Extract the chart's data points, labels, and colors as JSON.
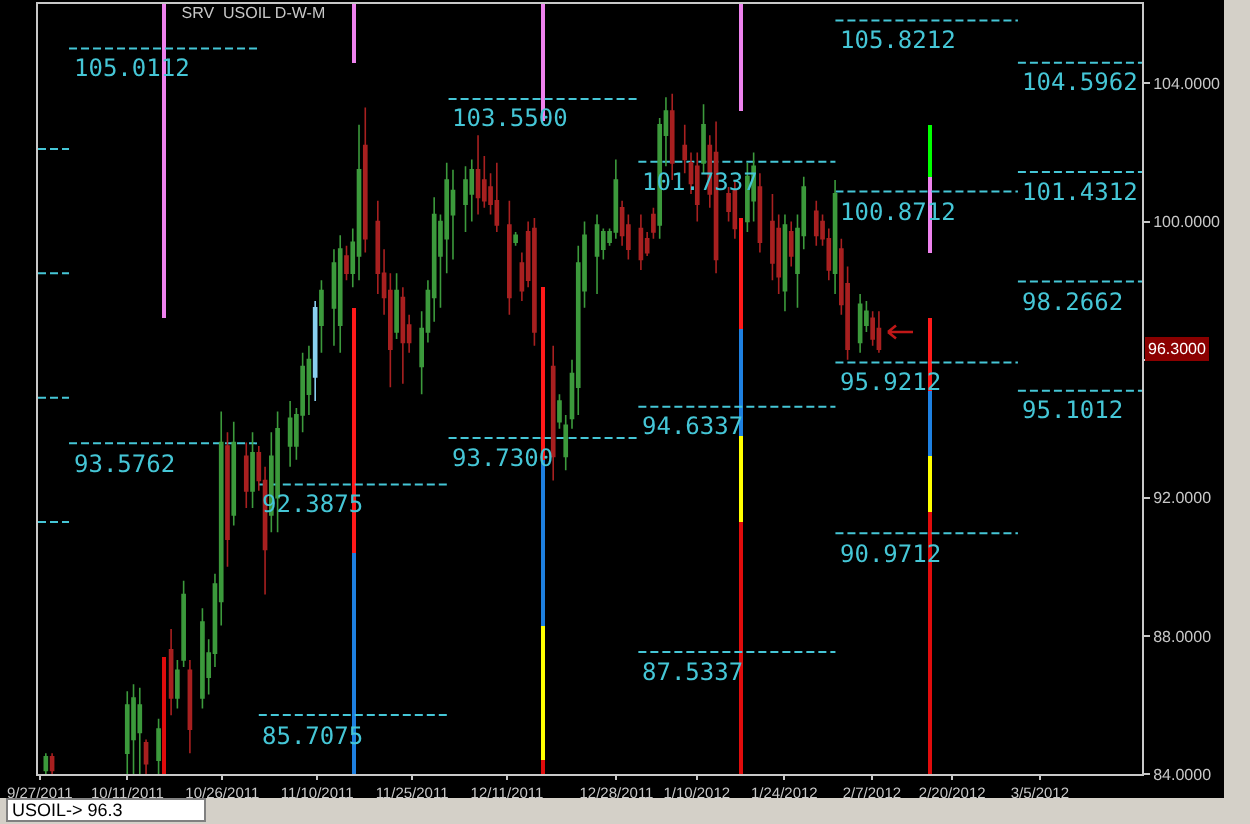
{
  "chart_data": {
    "type": "candlestick",
    "title": "SRV  USOIL D-W-M",
    "x": [
      "2011-09-28",
      "2011-09-29",
      "2011-10-11",
      "2011-10-12",
      "2011-10-13",
      "2011-10-14",
      "2011-10-16",
      "2011-10-18",
      "2011-10-19",
      "2011-10-20",
      "2011-10-21",
      "2011-10-23",
      "2011-10-24",
      "2011-10-25",
      "2011-10-26",
      "2011-10-27",
      "2011-10-28",
      "2011-10-30",
      "2011-10-31",
      "2011-11-01",
      "2011-11-02",
      "2011-11-03",
      "2011-11-04",
      "2011-11-06",
      "2011-11-07",
      "2011-11-08",
      "2011-11-09",
      "2011-11-10",
      "2011-11-11",
      "2011-11-13",
      "2011-11-14",
      "2011-11-15",
      "2011-11-16",
      "2011-11-17",
      "2011-11-18",
      "2011-11-20",
      "2011-11-21",
      "2011-11-22",
      "2011-11-23",
      "2011-11-24",
      "2011-11-25",
      "2011-11-27",
      "2011-11-28",
      "2011-11-29",
      "2011-11-30",
      "2011-12-01",
      "2011-12-02",
      "2011-12-04",
      "2011-12-05",
      "2011-12-06",
      "2011-12-07",
      "2011-12-08",
      "2011-12-09",
      "2011-12-11",
      "2011-12-12",
      "2011-12-13",
      "2011-12-14",
      "2011-12-15",
      "2011-12-18",
      "2011-12-19",
      "2011-12-20",
      "2011-12-21",
      "2011-12-22",
      "2011-12-23",
      "2011-12-25",
      "2011-12-26",
      "2011-12-27",
      "2011-12-28",
      "2011-12-29",
      "2011-12-30",
      "2012-01-01",
      "2012-01-02",
      "2012-01-03",
      "2012-01-04",
      "2012-01-05",
      "2012-01-06",
      "2012-01-08",
      "2012-01-09",
      "2012-01-10",
      "2012-01-11",
      "2012-01-12",
      "2012-01-13",
      "2012-01-15",
      "2012-01-16",
      "2012-01-18",
      "2012-01-19",
      "2012-01-20",
      "2012-01-22",
      "2012-01-23",
      "2012-01-24",
      "2012-01-25",
      "2012-01-26",
      "2012-01-27",
      "2012-01-29",
      "2012-01-30",
      "2012-01-31",
      "2012-02-01",
      "2012-02-02",
      "2012-02-03",
      "2012-02-05",
      "2012-02-06",
      "2012-02-07",
      "2012-02-08"
    ],
    "ohlc": [
      [
        84.1,
        84.6,
        84,
        84.5
      ],
      [
        84.5,
        84.6,
        84,
        84.1
      ],
      [
        84.6,
        86.4,
        84,
        86
      ],
      [
        85,
        86.6,
        84,
        86.2
      ],
      [
        85.2,
        86.5,
        84,
        86
      ],
      [
        84.9,
        85,
        84,
        84.3
      ],
      [
        84.4,
        85.6,
        84,
        85.3
      ],
      [
        87.6,
        88.2,
        85.7,
        86.2
      ],
      [
        86.2,
        87.3,
        85.9,
        87
      ],
      [
        87.3,
        89.6,
        87.1,
        89.2
      ],
      [
        87,
        87.3,
        84.6,
        85.3
      ],
      [
        86.2,
        88.8,
        85.9,
        88.4
      ],
      [
        86.8,
        87.9,
        86.3,
        87.5
      ],
      [
        87.5,
        89.8,
        87.1,
        89.5
      ],
      [
        89,
        94.5,
        88.3,
        93.6
      ],
      [
        93.5,
        93.9,
        90,
        90.8
      ],
      [
        91.5,
        94.2,
        91.2,
        93.6
      ],
      [
        93.2,
        93.6,
        91.7,
        92.2
      ],
      [
        92.2,
        93.9,
        91.7,
        93.3
      ],
      [
        93.3,
        93.5,
        92.2,
        92.5
      ],
      [
        92.5,
        92.9,
        89.2,
        90.5
      ],
      [
        91.5,
        93.9,
        91,
        93.2
      ],
      [
        92,
        94.5,
        91,
        94
      ],
      [
        93.5,
        94.8,
        92.9,
        94.3
      ],
      [
        93.5,
        94.6,
        93.1,
        94.4
      ],
      [
        94.4,
        96.2,
        93.9,
        95.8
      ],
      [
        95,
        96.4,
        94.4,
        96
      ],
      [
        95.5,
        97.7,
        94.8,
        97.5
      ],
      [
        97,
        98.3,
        96.2,
        98
      ],
      [
        97.5,
        99.2,
        96.4,
        98.8
      ],
      [
        97,
        99.6,
        96.2,
        99.2
      ],
      [
        99,
        99.3,
        98.3,
        98.5
      ],
      [
        98.5,
        99.8,
        98.1,
        99.4
      ],
      [
        99,
        102.8,
        98.3,
        101.5
      ],
      [
        102.2,
        103.3,
        99.1,
        99.5
      ],
      [
        100,
        100.6,
        97.9,
        98.5
      ],
      [
        98.5,
        99.2,
        97.3,
        97.8
      ],
      [
        98,
        98.5,
        95.2,
        96.3
      ],
      [
        96.8,
        98.5,
        96.6,
        98
      ],
      [
        97.8,
        98.1,
        95.3,
        96.5
      ],
      [
        97,
        97.3,
        96.2,
        96.5
      ],
      [
        95.8,
        97.4,
        95,
        96.9
      ],
      [
        96.8,
        98.3,
        96.5,
        98
      ],
      [
        97.8,
        100.7,
        97.1,
        100.2
      ],
      [
        99,
        100.2,
        97.5,
        100
      ],
      [
        99.5,
        101.7,
        98.5,
        101.2
      ],
      [
        100.2,
        101.5,
        98.9,
        100.9
      ],
      [
        100.5,
        101.6,
        99.7,
        101.2
      ],
      [
        100.8,
        101.8,
        100,
        101.5
      ],
      [
        101.5,
        102.5,
        100.2,
        100.7
      ],
      [
        101.2,
        101.9,
        100.4,
        100.6
      ],
      [
        101,
        101.4,
        100.2,
        100.5
      ],
      [
        100.6,
        101.7,
        99.7,
        99.9
      ],
      [
        99.9,
        100.6,
        97.3,
        97.8
      ],
      [
        99.4,
        99.7,
        99.3,
        99.6
      ],
      [
        98.8,
        99.1,
        97.7,
        98
      ],
      [
        99.7,
        100,
        98.1,
        98.3
      ],
      [
        99.8,
        100.1,
        96.4,
        96.8
      ],
      [
        95.8,
        96.4,
        92.5,
        93.2
      ],
      [
        94.2,
        95,
        94,
        94.8
      ],
      [
        93.2,
        94.4,
        92.8,
        94.1
      ],
      [
        94.3,
        96,
        94,
        95.6
      ],
      [
        95.2,
        99.3,
        94.4,
        98.8
      ],
      [
        98,
        100,
        97.5,
        99.6
      ],
      [
        99,
        100.2,
        97.9,
        99.9
      ],
      [
        99.2,
        99.8,
        98.9,
        99.7
      ],
      [
        99.4,
        99.8,
        99.3,
        99.7
      ],
      [
        99.7,
        101.8,
        99.5,
        101.2
      ],
      [
        100.4,
        100.6,
        99.3,
        99.6
      ],
      [
        99.9,
        100.2,
        98.9,
        99.2
      ],
      [
        99.8,
        100.2,
        98.6,
        98.9
      ],
      [
        99.5,
        99.7,
        99,
        99.1
      ],
      [
        100.2,
        100.4,
        99.5,
        99.7
      ],
      [
        99.9,
        103,
        99.5,
        102.8
      ],
      [
        102.5,
        103.6,
        101.6,
        103.2
      ],
      [
        103.2,
        103.7,
        101.2,
        101.7
      ],
      [
        102.2,
        102.8,
        101.4,
        101.8
      ],
      [
        101.7,
        102,
        100.8,
        101.1
      ],
      [
        101.6,
        102,
        100,
        100.5
      ],
      [
        101.7,
        103.4,
        101.4,
        102.8
      ],
      [
        102.2,
        102.5,
        100.4,
        100.8
      ],
      [
        102,
        102.9,
        98.5,
        98.9
      ],
      [
        100.8,
        101,
        100,
        100.3
      ],
      [
        100.9,
        101.2,
        99.5,
        99.8
      ],
      [
        100,
        101.7,
        99.7,
        101.3
      ],
      [
        100.6,
        102,
        100,
        101.6
      ],
      [
        101,
        101.4,
        99.1,
        99.4
      ],
      [
        100,
        100.8,
        98.3,
        98.8
      ],
      [
        99.8,
        100.2,
        97.9,
        98.4
      ],
      [
        98,
        100.2,
        97.4,
        99.9
      ],
      [
        99.7,
        100,
        98.7,
        99
      ],
      [
        98.5,
        100.2,
        97.5,
        99.8
      ],
      [
        99.6,
        101.3,
        99.2,
        101
      ],
      [
        100.3,
        100.6,
        99.3,
        99.6
      ],
      [
        100,
        100.2,
        99.3,
        99.5
      ],
      [
        99.5,
        99.8,
        98.3,
        98.6
      ],
      [
        98.5,
        101.2,
        97.9,
        100.8
      ],
      [
        99.2,
        99.5,
        97.3,
        97.6
      ],
      [
        98.2,
        98.7,
        96,
        96.3
      ],
      [
        96.5,
        97.9,
        96.2,
        97.6
      ],
      [
        97,
        97.7,
        96.8,
        97.4
      ],
      [
        97.2,
        97.4,
        96.4,
        96.6
      ],
      [
        96.9,
        97.4,
        96.2,
        96.3
      ]
    ],
    "colors": [
      "#3c9a3c",
      "#a82020",
      "#3c9a3c",
      "#3c9a3c",
      "#3c9a3c",
      "#a82020",
      "#3c9a3c",
      "#a82020",
      "#3c9a3c",
      "#3c9a3c",
      "#a82020",
      "#3c9a3c",
      "#3c9a3c",
      "#3c9a3c",
      "#3c9a3c",
      "#a82020",
      "#3c9a3c",
      "#a82020",
      "#3c9a3c",
      "#a82020",
      "#a82020",
      "#3c9a3c",
      "#3c9a3c",
      "#3c9a3c",
      "#3c9a3c",
      "#3c9a3c",
      "#3c9a3c",
      "#8ad0f0",
      "#3c9a3c",
      "#3c9a3c",
      "#3c9a3c",
      "#a82020",
      "#3c9a3c",
      "#3c9a3c",
      "#a82020",
      "#a82020",
      "#a82020",
      "#a82020",
      "#3c9a3c",
      "#a82020",
      "#a82020",
      "#3c9a3c",
      "#3c9a3c",
      "#3c9a3c",
      "#3c9a3c",
      "#3c9a3c",
      "#3c9a3c",
      "#3c9a3c",
      "#3c9a3c",
      "#a82020",
      "#a82020",
      "#a82020",
      "#a82020",
      "#a82020",
      "#3c9a3c",
      "#a82020",
      "#a82020",
      "#a82020",
      "#a82020",
      "#3c9a3c",
      "#3c9a3c",
      "#3c9a3c",
      "#3c9a3c",
      "#3c9a3c",
      "#3c9a3c",
      "#3c9a3c",
      "#3c9a3c",
      "#3c9a3c",
      "#a82020",
      "#a82020",
      "#a82020",
      "#a82020",
      "#a82020",
      "#3c9a3c",
      "#3c9a3c",
      "#a82020",
      "#a82020",
      "#a82020",
      "#a82020",
      "#3c9a3c",
      "#a82020",
      "#a82020",
      "#a82020",
      "#a82020",
      "#3c9a3c",
      "#3c9a3c",
      "#a82020",
      "#a82020",
      "#a82020",
      "#3c9a3c",
      "#a82020",
      "#3c9a3c",
      "#3c9a3c",
      "#a82020",
      "#a82020",
      "#a82020",
      "#3c9a3c",
      "#a82020",
      "#a82020",
      "#3c9a3c",
      "#3c9a3c",
      "#a82020",
      "#a82020"
    ],
    "series": [
      {
        "type": "bar",
        "color": "#ee82ee",
        "x": [
          "2011-10-17",
          "2011-11-16",
          "2011-12-16",
          "2012-01-17",
          "2012-02-16"
        ],
        "base": [
          97.2,
          104.6,
          102.9,
          103.2,
          99.1
        ],
        "values": [
          9.1,
          1.7,
          3.4,
          3.1,
          2.2
        ]
      },
      {
        "type": "bar",
        "color": "#ff1a1a",
        "x": [
          "2011-11-16",
          "2011-12-16",
          "2012-01-17",
          "2012-02-16"
        ],
        "base": [
          90.4,
          93.1,
          96.9,
          95.1
        ],
        "values": [
          7.1,
          5.0,
          3.2,
          2.1
        ]
      },
      {
        "type": "bar",
        "color": "#e00c0c",
        "x": [
          "2011-10-17",
          "2011-12-16",
          "2012-01-17",
          "2012-02-16"
        ],
        "base": [
          84,
          84,
          84,
          84
        ],
        "values": [
          3.4,
          0.4,
          7.3,
          7.6
        ]
      },
      {
        "type": "bar",
        "color": "#1e80e0",
        "x": [
          "2011-11-16",
          "2011-12-16",
          "2012-01-17",
          "2012-02-16"
        ],
        "base": [
          84,
          88.3,
          93.8,
          93.2
        ],
        "values": [
          6.4,
          4.8,
          3.1,
          1.9
        ]
      },
      {
        "type": "bar",
        "color": "#ffff00",
        "x": [
          "2011-12-16",
          "2012-01-17",
          "2012-02-16"
        ],
        "base": [
          84.4,
          91.3,
          91.6
        ],
        "values": [
          3.9,
          2.5,
          1.6
        ]
      },
      {
        "type": "bar",
        "color": "#00ff00",
        "x": [
          "2012-02-16"
        ],
        "base": [
          101.3
        ],
        "values": [
          1.5
        ]
      },
      {
        "type": "line",
        "color": "#45c6d6",
        "line_style": "dashed",
        "x": [
          "2011-09-26T18:00",
          "2011-10-02"
        ],
        "values": [
          102.1,
          102.1
        ]
      },
      {
        "type": "line",
        "color": "#45c6d6",
        "line_style": "dashed",
        "x": [
          "2011-09-26T18:00",
          "2011-10-02"
        ],
        "values": [
          98.5,
          98.5
        ]
      },
      {
        "type": "line",
        "color": "#45c6d6",
        "line_style": "dashed",
        "x": [
          "2011-09-26T18:00",
          "2011-10-02"
        ],
        "values": [
          94.9,
          94.9
        ]
      },
      {
        "type": "line",
        "color": "#45c6d6",
        "line_style": "dashed",
        "x": [
          "2011-09-26T18:00",
          "2011-10-02"
        ],
        "values": [
          91.3,
          91.3
        ]
      },
      {
        "type": "line",
        "color": "#45c6d6",
        "line_style": "dashed",
        "name": "105.0112",
        "x": [
          "2011-10-02",
          "2011-11-01"
        ],
        "values": [
          105.0112,
          105.0112
        ]
      },
      {
        "type": "line",
        "color": "#45c6d6",
        "line_style": "dashed",
        "name": "93.5762",
        "x": [
          "2011-10-02",
          "2011-11-01"
        ],
        "values": [
          93.5762,
          93.5762
        ]
      },
      {
        "type": "line",
        "color": "#45c6d6",
        "line_style": "dashed",
        "name": "92.3875",
        "x": [
          "2011-11-01",
          "2011-12-01"
        ],
        "values": [
          92.3875,
          92.3875
        ]
      },
      {
        "type": "line",
        "color": "#45c6d6",
        "line_style": "dashed",
        "name": "85.7075",
        "x": [
          "2011-11-01",
          "2011-12-01"
        ],
        "values": [
          85.7075,
          85.7075
        ]
      },
      {
        "type": "line",
        "color": "#45c6d6",
        "line_style": "dashed",
        "name": "103.5500",
        "x": [
          "2011-12-01",
          "2012-01-01"
        ],
        "values": [
          103.55,
          103.55
        ]
      },
      {
        "type": "line",
        "color": "#45c6d6",
        "line_style": "dashed",
        "name": "93.7300",
        "x": [
          "2011-12-01",
          "2012-01-01"
        ],
        "values": [
          93.73,
          93.73
        ]
      },
      {
        "type": "line",
        "color": "#45c6d6",
        "line_style": "dashed",
        "name": "101.7337",
        "x": [
          "2012-01-01",
          "2012-02-01"
        ],
        "values": [
          101.7337,
          101.7337
        ]
      },
      {
        "type": "line",
        "color": "#45c6d6",
        "line_style": "dashed",
        "name": "94.6337",
        "x": [
          "2012-01-01",
          "2012-02-01"
        ],
        "values": [
          94.6337,
          94.6337
        ]
      },
      {
        "type": "line",
        "color": "#45c6d6",
        "line_style": "dashed",
        "name": "87.5337",
        "x": [
          "2012-01-01",
          "2012-02-01"
        ],
        "values": [
          87.5337,
          87.5337
        ]
      },
      {
        "type": "line",
        "color": "#45c6d6",
        "line_style": "dashed",
        "name": "105.8212",
        "x": [
          "2012-02-01",
          "2012-03-01"
        ],
        "values": [
          105.8212,
          105.8212
        ]
      },
      {
        "type": "line",
        "color": "#45c6d6",
        "line_style": "dashed",
        "name": "100.8712",
        "x": [
          "2012-02-01",
          "2012-03-01"
        ],
        "values": [
          100.8712,
          100.8712
        ]
      },
      {
        "type": "line",
        "color": "#45c6d6",
        "line_style": "dashed",
        "name": "95.9212",
        "x": [
          "2012-02-01",
          "2012-03-01"
        ],
        "values": [
          95.9212,
          95.9212
        ]
      },
      {
        "type": "line",
        "color": "#45c6d6",
        "line_style": "dashed",
        "name": "90.9712",
        "x": [
          "2012-02-01",
          "2012-03-01"
        ],
        "values": [
          90.9712,
          90.9712
        ]
      },
      {
        "type": "line",
        "color": "#45c6d6",
        "line_style": "dashed",
        "name": "104.5962",
        "x": [
          "2012-03-01",
          "2012-03-21"
        ],
        "values": [
          104.5962,
          104.5962
        ]
      },
      {
        "type": "line",
        "color": "#45c6d6",
        "line_style": "dashed",
        "name": "101.4312",
        "x": [
          "2012-03-01",
          "2012-03-21"
        ],
        "values": [
          101.4312,
          101.4312
        ]
      },
      {
        "type": "line",
        "color": "#45c6d6",
        "line_style": "dashed",
        "name": "98.2662",
        "x": [
          "2012-03-01",
          "2012-03-21"
        ],
        "values": [
          98.2662,
          98.2662
        ]
      },
      {
        "type": "line",
        "color": "#45c6d6",
        "line_style": "dashed",
        "name": "95.1012",
        "x": [
          "2012-03-01",
          "2012-03-21"
        ],
        "values": [
          95.1012,
          95.1012
        ]
      }
    ],
    "xlim": [
      "2011-09-26T18:00",
      "2012-03-21"
    ],
    "xticks": [
      {
        "value": "2011-09-27",
        "label": "9/27/2011"
      },
      {
        "value": "2011-10-11",
        "label": "10/11/2011"
      },
      {
        "value": "2011-10-26",
        "label": "10/26/2011"
      },
      {
        "value": "2011-11-10",
        "label": "11/10/2011"
      },
      {
        "value": "2011-11-25",
        "label": "11/25/2011"
      },
      {
        "value": "2011-12-11",
        "label": "12/11/2011"
      },
      {
        "value": "2011-12-28",
        "label": "12/28/2011"
      },
      {
        "value": "2012-01-10",
        "label": "1/10/2012"
      },
      {
        "value": "2012-01-24",
        "label": "1/24/2012"
      },
      {
        "value": "2012-02-07",
        "label": "2/7/2012"
      },
      {
        "value": "2012-02-20",
        "label": "2/20/2012"
      },
      {
        "value": "2012-03-05",
        "label": "3/5/2012"
      }
    ],
    "ylim": [
      84,
      106.3
    ],
    "yticks": [
      {
        "value": 84,
        "label": "84.0000"
      },
      {
        "value": 88,
        "label": "88.0000"
      },
      {
        "value": 92,
        "label": "92.0000"
      },
      {
        "value": 96,
        "label": null
      },
      {
        "value": 100,
        "label": "100.0000"
      },
      {
        "value": 104,
        "label": "104.0000"
      }
    ],
    "annotations": [
      {
        "text": "96.3000",
        "y": 96.3
      },
      "USOIL-> 96.3"
    ],
    "grid": false
  }
}
